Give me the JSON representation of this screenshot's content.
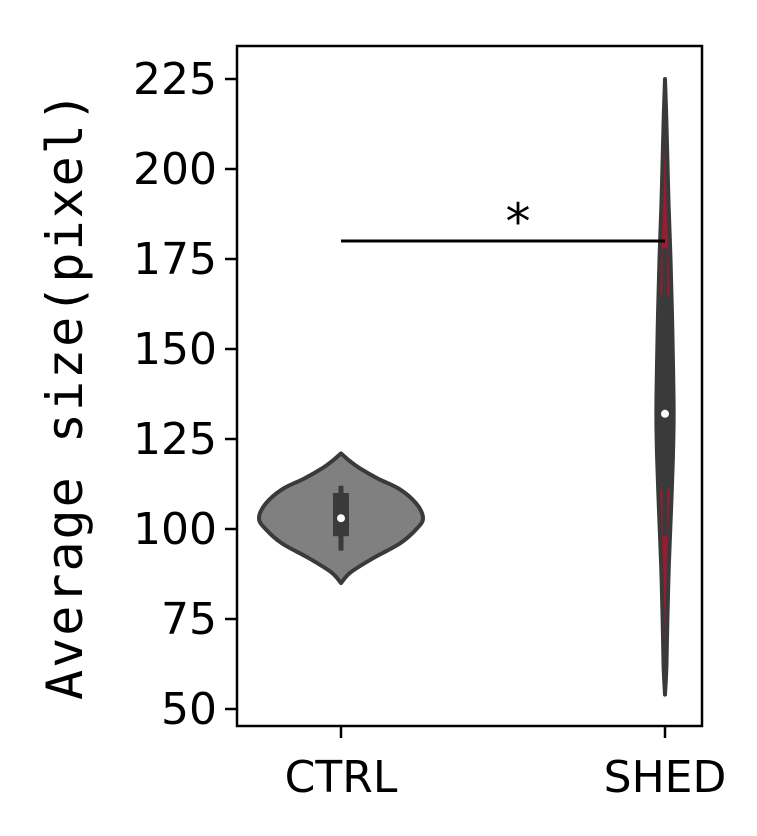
{
  "chart_data": {
    "type": "violin",
    "title": "",
    "xlabel": "",
    "ylabel": "Average size(pixel)",
    "ylim": [
      45,
      235
    ],
    "yticks": [
      50,
      75,
      100,
      125,
      150,
      175,
      200,
      225
    ],
    "categories": [
      "CTRL",
      "SHED"
    ],
    "groups": [
      {
        "label": "CTRL",
        "color": "#808080",
        "min": 85,
        "max": 121,
        "q1": 98,
        "median": 103,
        "q3": 110,
        "whisker_low": 94,
        "whisker_high": 112,
        "density": [
          [
            85,
            0.0
          ],
          [
            88,
            0.12
          ],
          [
            92,
            0.4
          ],
          [
            96,
            0.72
          ],
          [
            100,
            0.92
          ],
          [
            103,
            1.0
          ],
          [
            107,
            0.92
          ],
          [
            111,
            0.72
          ],
          [
            114,
            0.45
          ],
          [
            117,
            0.22
          ],
          [
            119,
            0.1
          ],
          [
            121,
            0.0
          ]
        ]
      },
      {
        "label": "SHED",
        "color": "#9b1b30",
        "min": 54,
        "max": 225,
        "q1": 111,
        "median": 132,
        "q3": 165,
        "whisker_low": 98,
        "whisker_high": 178,
        "density": [
          [
            54,
            0.0
          ],
          [
            62,
            0.12
          ],
          [
            75,
            0.2
          ],
          [
            90,
            0.32
          ],
          [
            105,
            0.5
          ],
          [
            120,
            0.66
          ],
          [
            132,
            0.72
          ],
          [
            145,
            0.67
          ],
          [
            160,
            0.58
          ],
          [
            175,
            0.46
          ],
          [
            190,
            0.3
          ],
          [
            205,
            0.18
          ],
          [
            215,
            0.1
          ],
          [
            225,
            0.0
          ]
        ]
      }
    ],
    "annotations": [
      {
        "text": "*",
        "type": "significance",
        "between": [
          "CTRL",
          "SHED"
        ],
        "y": 180
      }
    ]
  }
}
